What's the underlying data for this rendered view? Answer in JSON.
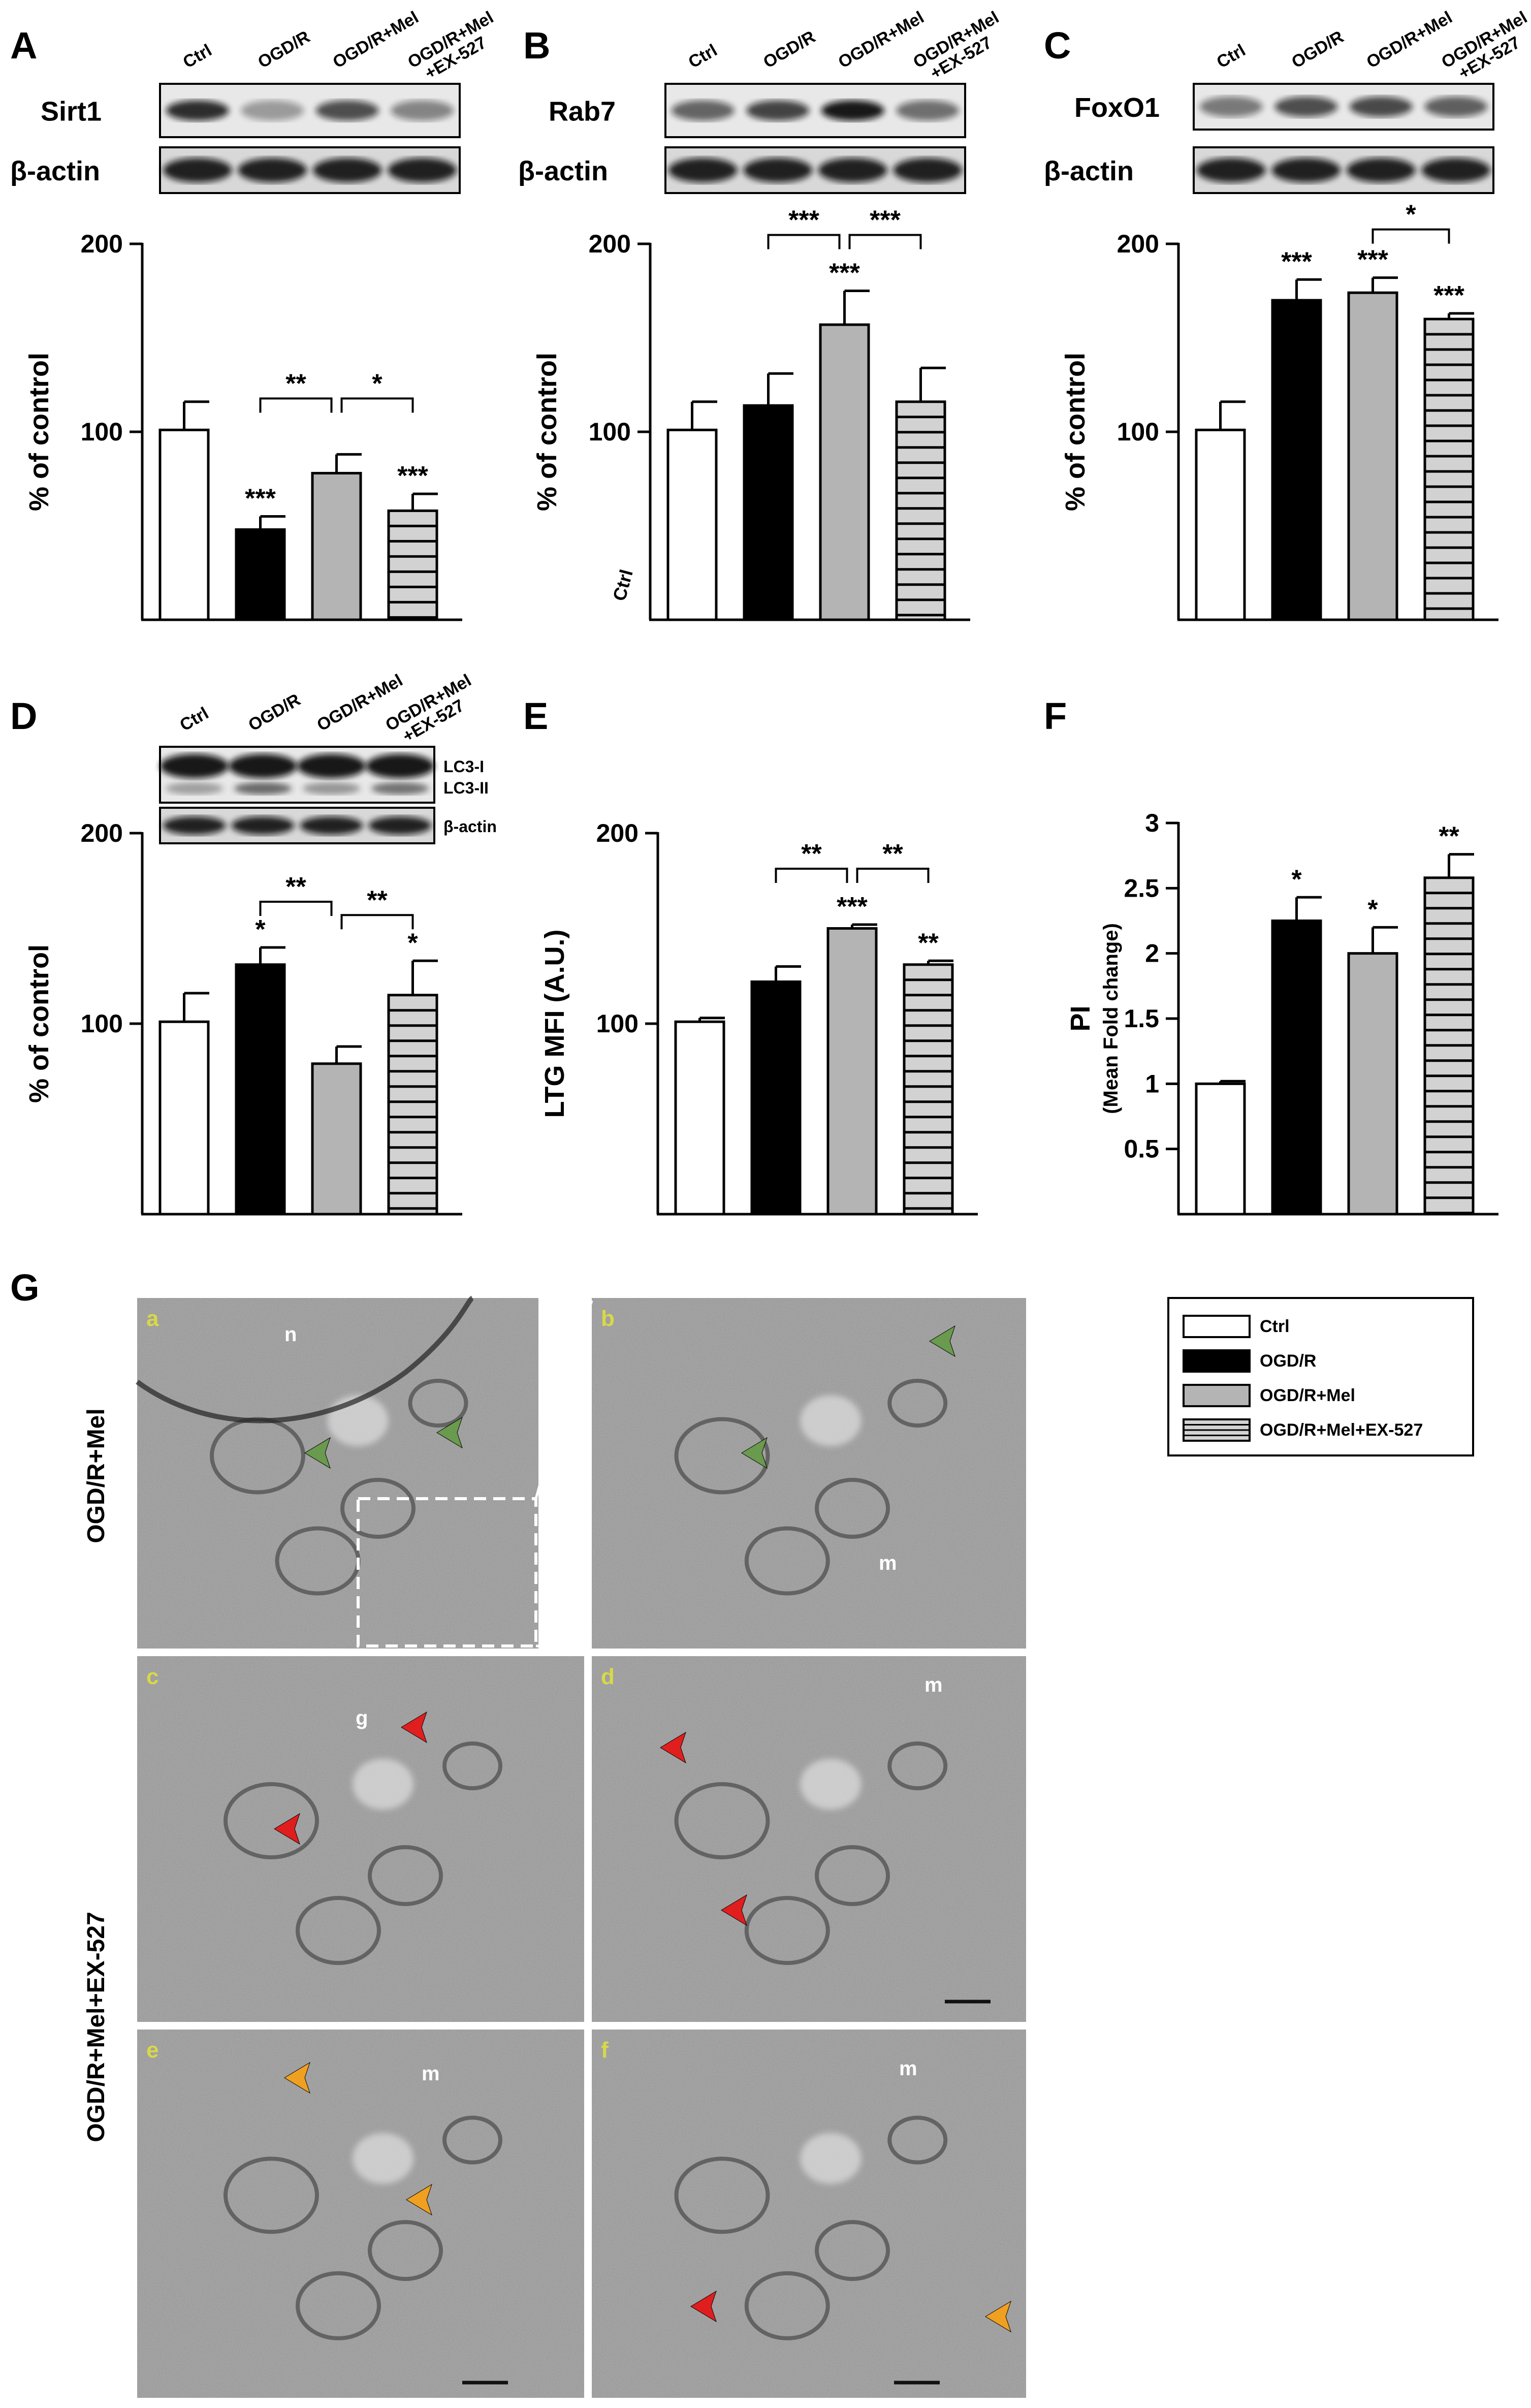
{
  "panel_letters": [
    "A",
    "B",
    "C",
    "D",
    "E",
    "F",
    "G"
  ],
  "group_labels": [
    "Ctrl",
    "OGD/R",
    "OGD/R+Mel",
    "OGD/R+Mel\n+EX-527"
  ],
  "blots": {
    "A": {
      "target": "Sirt1",
      "loading": "β-actin"
    },
    "B": {
      "target": "Rab7",
      "loading": "β-actin"
    },
    "C": {
      "target": "FoxO1",
      "loading": "β-actin"
    },
    "D": {
      "target_top": "LC3-I",
      "target_bottom": "LC3-II",
      "loading": "β-actin"
    }
  },
  "stray_label_B": "Ctrl",
  "chart_data": [
    {
      "panel": "A",
      "type": "bar",
      "categories": [
        "Ctrl",
        "OGD/R",
        "OGD/R+Mel",
        "OGD/R+Mel+EX-527"
      ],
      "values": [
        101,
        48,
        78,
        58
      ],
      "errors": [
        15,
        7,
        10,
        9
      ],
      "marks": [
        "",
        "***",
        "",
        "***"
      ],
      "ylabel": "% of control",
      "ylim": [
        0,
        200
      ],
      "yticks": [
        100,
        200
      ],
      "brackets": [
        {
          "from": 1,
          "to": 2,
          "text": "**"
        },
        {
          "from": 2,
          "to": 3,
          "text": "*"
        }
      ]
    },
    {
      "panel": "B",
      "type": "bar",
      "categories": [
        "Ctrl",
        "OGD/R",
        "OGD/R+Mel",
        "OGD/R+Mel+EX-527"
      ],
      "values": [
        101,
        114,
        157,
        116
      ],
      "errors": [
        15,
        17,
        18,
        18
      ],
      "marks": [
        "",
        "",
        "***",
        ""
      ],
      "ylabel": "% of control",
      "ylim": [
        0,
        200
      ],
      "yticks": [
        100,
        200
      ],
      "brackets": [
        {
          "from": 1,
          "to": 2,
          "text": "***"
        },
        {
          "from": 2,
          "to": 3,
          "text": "***"
        }
      ]
    },
    {
      "panel": "C",
      "type": "bar",
      "categories": [
        "Ctrl",
        "OGD/R",
        "OGD/R+Mel",
        "OGD/R+Mel+EX-527"
      ],
      "values": [
        101,
        170,
        174,
        160
      ],
      "errors": [
        15,
        11,
        8,
        3
      ],
      "marks": [
        "",
        "***",
        "***",
        "***"
      ],
      "ylabel": "% of control",
      "ylim": [
        0,
        200
      ],
      "yticks": [
        100,
        200
      ],
      "brackets": [
        {
          "from": 2,
          "to": 3,
          "text": "*"
        }
      ]
    },
    {
      "panel": "D",
      "type": "bar",
      "categories": [
        "Ctrl",
        "OGD/R",
        "OGD/R+Mel",
        "OGD/R+Mel+EX-527"
      ],
      "values": [
        101,
        131,
        79,
        115
      ],
      "errors": [
        15,
        9,
        9,
        18
      ],
      "marks": [
        "",
        "*",
        "",
        "*"
      ],
      "ylabel": "% of control",
      "ylim": [
        0,
        200
      ],
      "yticks": [
        100,
        200
      ],
      "brackets": [
        {
          "from": 1,
          "to": 2,
          "text": "**"
        },
        {
          "from": 2,
          "to": 3,
          "text": "**"
        }
      ]
    },
    {
      "panel": "E",
      "type": "bar",
      "categories": [
        "Ctrl",
        "OGD/R",
        "OGD/R+Mel",
        "OGD/R+Mel+EX-527"
      ],
      "values": [
        101,
        122,
        150,
        131
      ],
      "errors": [
        2,
        8,
        2,
        2
      ],
      "marks": [
        "",
        "",
        "***",
        "**"
      ],
      "ylabel": "LTG MFI (A.U.)",
      "ylim": [
        0,
        200
      ],
      "yticks": [
        100,
        200
      ],
      "brackets": [
        {
          "from": 1,
          "to": 2,
          "text": "**"
        },
        {
          "from": 2,
          "to": 3,
          "text": "**"
        }
      ]
    },
    {
      "panel": "F",
      "type": "bar",
      "categories": [
        "Ctrl",
        "OGD/R",
        "OGD/R+Mel",
        "OGD/R+Mel+EX-527"
      ],
      "values": [
        1.0,
        2.25,
        2.0,
        2.58
      ],
      "errors": [
        0.02,
        0.18,
        0.2,
        0.18
      ],
      "marks": [
        "",
        "*",
        "*",
        "**"
      ],
      "ylabel": "PI",
      "ylabel_sub": "(Mean Fold change)",
      "ylim": [
        0,
        3
      ],
      "yticks": [
        0.5,
        1,
        1.5,
        2,
        2.5,
        3
      ],
      "brackets": []
    }
  ],
  "legend": {
    "items": [
      {
        "label": "Ctrl",
        "style": "white"
      },
      {
        "label": "OGD/R",
        "style": "black"
      },
      {
        "label": "OGD/R+Mel",
        "style": "gray"
      },
      {
        "label": "OGD/R+Mel+EX-527",
        "style": "hatched"
      }
    ]
  },
  "micrographs": {
    "row_labels": [
      "OGD/R+Mel",
      "OGD/R+Mel+EX-527"
    ],
    "tiles": [
      {
        "letter": "a",
        "labels": [
          "n"
        ]
      },
      {
        "letter": "b",
        "labels": [
          "m"
        ]
      },
      {
        "letter": "c",
        "labels": [
          "g"
        ]
      },
      {
        "letter": "d",
        "labels": [
          "m"
        ]
      },
      {
        "letter": "e",
        "labels": [
          "m"
        ]
      },
      {
        "letter": "f",
        "labels": [
          "m"
        ]
      }
    ]
  },
  "colors": {
    "black_bar": "#000000",
    "gray_bar": "#b4b4b4",
    "white_bar": "#ffffff",
    "green_arrow": "#6a9a4e",
    "red_arrow": "#e01e1e",
    "orange_arrow": "#f0a020",
    "em_background": "#8a8a8a"
  }
}
